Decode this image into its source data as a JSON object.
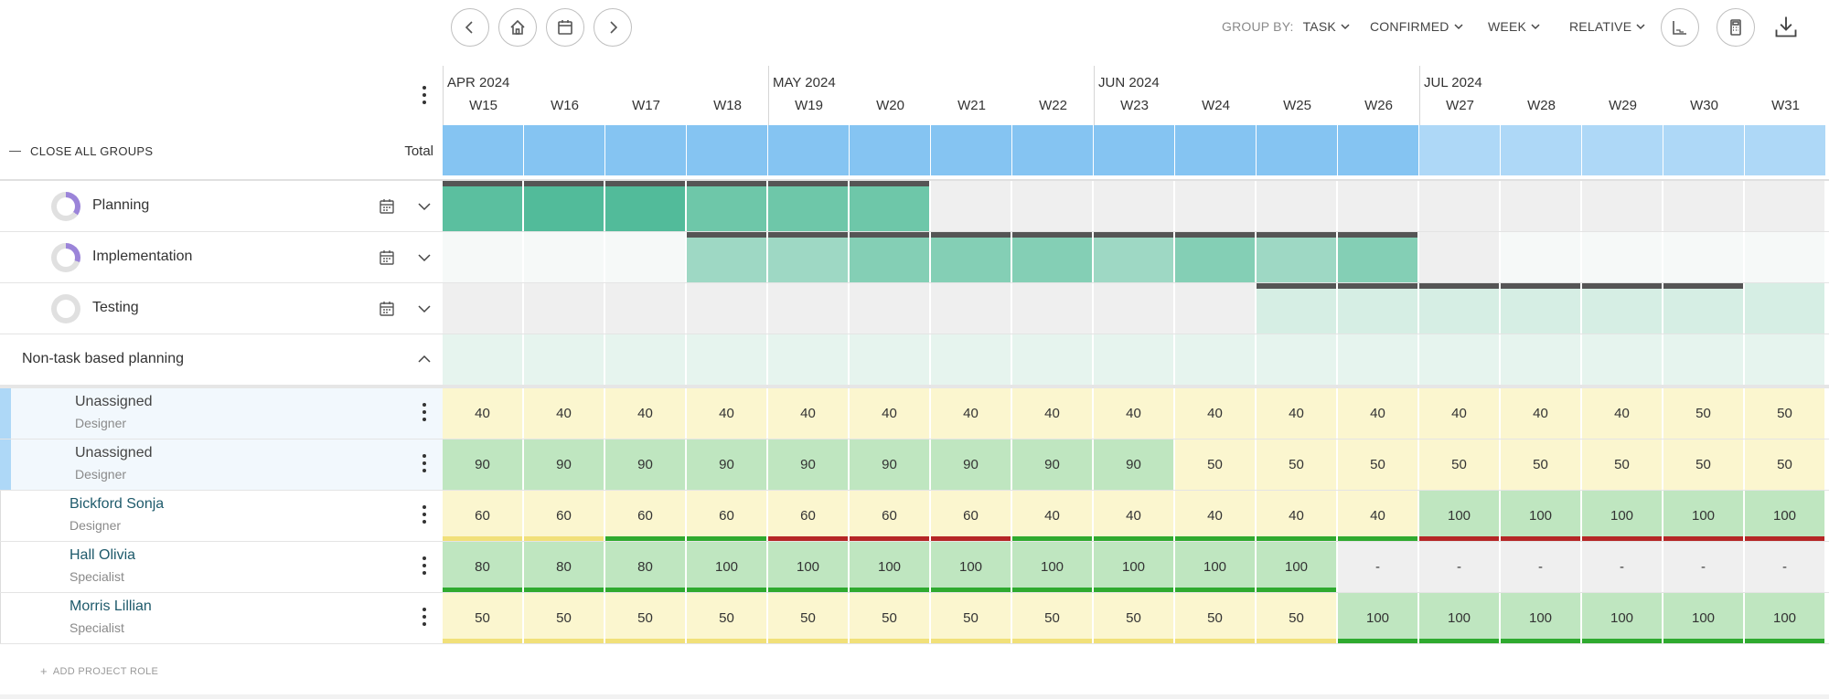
{
  "toolbar": {
    "nav_buttons": [
      "prev-icon",
      "home-icon",
      "calendar-icon",
      "next-icon"
    ],
    "group_by_label": "GROUP BY:",
    "group_by_value": "TASK",
    "confirmed": "CONFIRMED",
    "week": "WEEK",
    "relative": "RELATIVE",
    "right_icons": [
      "chart-icon",
      "calculator-icon",
      "download-icon"
    ]
  },
  "header": {
    "close_all_groups": "CLOSE ALL GROUPS",
    "total_label": "Total",
    "months": [
      {
        "label": "APR 2024",
        "start": 0
      },
      {
        "label": "MAY 2024",
        "start": 4
      },
      {
        "label": "JUN 2024",
        "start": 8
      },
      {
        "label": "JUL 2024",
        "start": 12
      }
    ],
    "weeks": [
      "W15",
      "W16",
      "W17",
      "W18",
      "W19",
      "W20",
      "W21",
      "W22",
      "W23",
      "W24",
      "W25",
      "W26",
      "W27",
      "W28",
      "W29",
      "W30",
      "W31"
    ],
    "total_colors": [
      "#85c4f2",
      "#85c4f2",
      "#85c4f2",
      "#85c4f2",
      "#85c4f2",
      "#85c4f2",
      "#85c4f2",
      "#85c4f2",
      "#85c4f2",
      "#85c4f2",
      "#85c4f2",
      "#85c4f2",
      "#aed8f7",
      "#aed8f7",
      "#aed8f7",
      "#aed8f7",
      "#aed8f7"
    ]
  },
  "tasks": [
    {
      "name": "Planning",
      "progress": 0.35,
      "cell_colors": [
        "#5bbf9f",
        "#52bb9a",
        "#52bb9a",
        "#6ec7a9",
        "#6ec7a9",
        "#6ec7a9",
        "#efefef",
        "#efefef",
        "#efefef",
        "#efefef",
        "#efefef",
        "#efefef",
        "#efefef",
        "#efefef",
        "#efefef",
        "#efefef",
        "#efefef"
      ],
      "active_weeks": [
        0,
        1,
        2,
        3,
        4,
        5
      ]
    },
    {
      "name": "Implementation",
      "progress": 0.3,
      "cell_colors": [
        "#f6f9f8",
        "#f6f9f8",
        "#f6f9f8",
        "#9ed8c4",
        "#9ed8c4",
        "#84cfb5",
        "#84cfb5",
        "#84cfb5",
        "#9ed8c4",
        "#84cfb5",
        "#9ed8c4",
        "#84cfb5",
        "#efefef",
        "#f6f9f8",
        "#f6f9f8",
        "#f6f9f8",
        "#f6f9f8"
      ],
      "active_weeks": [
        3,
        4,
        5,
        6,
        7,
        8,
        9,
        10,
        11
      ]
    },
    {
      "name": "Testing",
      "progress": 0.0,
      "cell_colors": [
        "#efefef",
        "#efefef",
        "#efefef",
        "#efefef",
        "#efefef",
        "#efefef",
        "#efefef",
        "#efefef",
        "#efefef",
        "#efefef",
        "#d6eee4",
        "#d6eee4",
        "#d6eee4",
        "#d6eee4",
        "#d6eee4",
        "#d6eee4",
        "#d6eee4"
      ],
      "active_weeks": [
        10,
        11,
        12,
        13,
        14,
        15
      ]
    }
  ],
  "non_task": {
    "label": "Non-task based planning",
    "cell_color": "#e6f4ee"
  },
  "people": [
    {
      "name": "Unassigned",
      "role": "Designer",
      "unassigned": true,
      "values": [
        "40",
        "40",
        "40",
        "40",
        "40",
        "40",
        "40",
        "40",
        "40",
        "40",
        "40",
        "40",
        "40",
        "40",
        "40",
        "50",
        "50"
      ],
      "colors": [
        "Y",
        "Y",
        "Y",
        "Y",
        "Y",
        "Y",
        "Y",
        "Y",
        "Y",
        "Y",
        "Y",
        "Y",
        "Y",
        "Y",
        "Y",
        "Y",
        "Y"
      ],
      "lines": [
        "",
        "",
        "",
        "",
        "",
        "",
        "",
        "",
        "",
        "",
        "",
        "",
        "",
        "",
        "",
        "",
        ""
      ]
    },
    {
      "name": "Unassigned",
      "role": "Designer",
      "unassigned": true,
      "values": [
        "90",
        "90",
        "90",
        "90",
        "90",
        "90",
        "90",
        "90",
        "90",
        "50",
        "50",
        "50",
        "50",
        "50",
        "50",
        "50",
        "50"
      ],
      "colors": [
        "G",
        "G",
        "G",
        "G",
        "G",
        "G",
        "G",
        "G",
        "G",
        "Y",
        "Y",
        "Y",
        "Y",
        "Y",
        "Y",
        "Y",
        "Y"
      ],
      "lines": [
        "",
        "",
        "",
        "",
        "",
        "",
        "",
        "",
        "",
        "",
        "",
        "",
        "",
        "",
        "",
        "",
        ""
      ]
    },
    {
      "name": "Bickford Sonja",
      "role": "Designer",
      "unassigned": false,
      "values": [
        "60",
        "60",
        "60",
        "60",
        "60",
        "60",
        "60",
        "40",
        "40",
        "40",
        "40",
        "40",
        "100",
        "100",
        "100",
        "100",
        "100"
      ],
      "colors": [
        "Y",
        "Y",
        "Y",
        "Y",
        "Y",
        "Y",
        "Y",
        "Y",
        "Y",
        "Y",
        "Y",
        "Y",
        "G",
        "G",
        "G",
        "G",
        "G"
      ],
      "lines": [
        "yellow",
        "yellow",
        "green",
        "green",
        "red",
        "red",
        "red",
        "green",
        "green",
        "green",
        "green",
        "green",
        "red",
        "red",
        "red",
        "red",
        "red"
      ]
    },
    {
      "name": "Hall Olivia",
      "role": "Specialist",
      "unassigned": false,
      "values": [
        "80",
        "80",
        "80",
        "100",
        "100",
        "100",
        "100",
        "100",
        "100",
        "100",
        "100",
        "-",
        "-",
        "-",
        "-",
        "-",
        "-"
      ],
      "colors": [
        "G",
        "G",
        "G",
        "G",
        "G",
        "G",
        "G",
        "G",
        "G",
        "G",
        "G",
        "E",
        "E",
        "E",
        "E",
        "E",
        "E"
      ],
      "lines": [
        "green",
        "green",
        "green",
        "green",
        "green",
        "green",
        "green",
        "green",
        "green",
        "green",
        "green",
        "",
        "",
        "",
        "",
        "",
        ""
      ]
    },
    {
      "name": "Morris Lillian",
      "role": "Specialist",
      "unassigned": false,
      "values": [
        "50",
        "50",
        "50",
        "50",
        "50",
        "50",
        "50",
        "50",
        "50",
        "50",
        "50",
        "100",
        "100",
        "100",
        "100",
        "100",
        "100"
      ],
      "colors": [
        "Y",
        "Y",
        "Y",
        "Y",
        "Y",
        "Y",
        "Y",
        "Y",
        "Y",
        "Y",
        "Y",
        "G",
        "G",
        "G",
        "G",
        "G",
        "G"
      ],
      "lines": [
        "yellow",
        "yellow",
        "yellow",
        "yellow",
        "yellow",
        "yellow",
        "yellow",
        "yellow",
        "yellow",
        "yellow",
        "yellow",
        "green",
        "green",
        "green",
        "green",
        "green",
        "green"
      ]
    }
  ],
  "palette": {
    "Y": "#fbf6cf",
    "G": "#bfe6c0",
    "E": "#efefef",
    "yellow": "#f1e079",
    "green": "#2faa2f",
    "red": "#b52626",
    "accent_blue": "#aed8f7"
  },
  "add_project_role": "ADD PROJECT ROLE"
}
